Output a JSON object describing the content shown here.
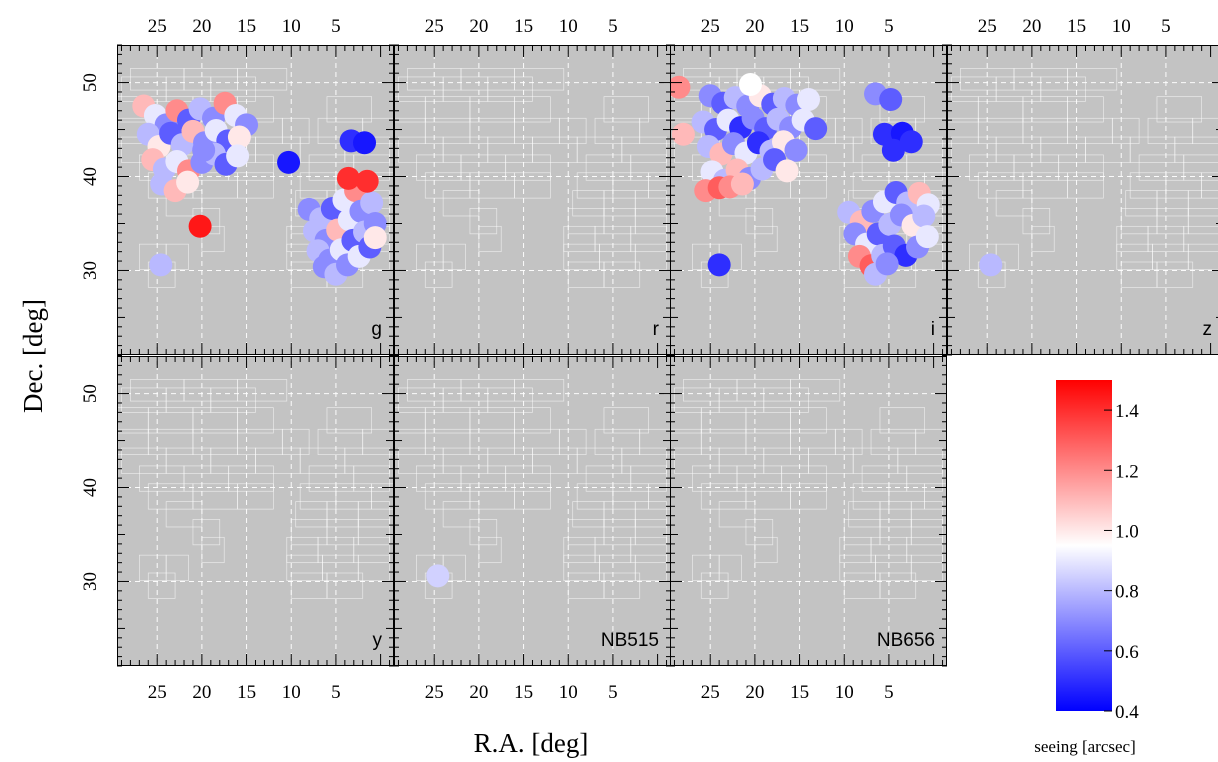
{
  "chart_data": {
    "type": "heatmap",
    "xlabel": "R.A. [deg]",
    "ylabel": "Dec. [deg]",
    "xlim": [
      29.5,
      -1.5
    ],
    "ylim": [
      21,
      54
    ],
    "x_ticks": [
      25,
      20,
      15,
      10,
      5
    ],
    "y_ticks": [
      30,
      40,
      50
    ],
    "panels": [
      {
        "band": "g",
        "spots": [
          [
            26.5,
            47.5,
            1.1
          ],
          [
            25.2,
            46.5,
            0.9
          ],
          [
            24,
            45.5,
            0.7
          ],
          [
            22.8,
            47,
            1.2
          ],
          [
            21.5,
            46,
            0.6
          ],
          [
            20.2,
            47.2,
            0.8
          ],
          [
            18.7,
            46.2,
            0.7
          ],
          [
            17.4,
            47.8,
            1.2
          ],
          [
            16.2,
            46.5,
            0.9
          ],
          [
            15,
            45.5,
            0.7
          ],
          [
            26,
            44.5,
            0.8
          ],
          [
            24.8,
            43.2,
            1.0
          ],
          [
            23.5,
            44.6,
            0.6
          ],
          [
            22.2,
            43.4,
            0.8
          ],
          [
            21,
            44.8,
            1.1
          ],
          [
            19.7,
            43.6,
            0.7
          ],
          [
            18.4,
            44.9,
            0.9
          ],
          [
            17.1,
            43.8,
            0.6
          ],
          [
            15.8,
            44.2,
            1.0
          ],
          [
            25.5,
            41.8,
            1.1
          ],
          [
            24.2,
            40.8,
            0.8
          ],
          [
            22.8,
            41.6,
            0.9
          ],
          [
            21.5,
            40.6,
            1.2
          ],
          [
            20,
            41.5,
            0.7
          ],
          [
            18.6,
            42.4,
            0.8
          ],
          [
            17.3,
            41.3,
            0.6
          ],
          [
            16,
            42.2,
            0.9
          ],
          [
            24.5,
            39.2,
            0.8
          ],
          [
            23,
            38.5,
            1.1
          ],
          [
            21.6,
            39.4,
            1.0
          ],
          [
            19.8,
            42.8,
            0.7
          ],
          [
            20.2,
            34.7,
            1.45
          ],
          [
            24.6,
            30.6,
            0.8
          ],
          [
            10.3,
            41.5,
            0.45
          ],
          [
            3.3,
            43.8,
            0.5
          ],
          [
            1.8,
            43.6,
            0.45
          ],
          [
            8,
            36.5,
            0.7
          ],
          [
            6.7,
            35.5,
            0.8
          ],
          [
            5.4,
            36.6,
            0.6
          ],
          [
            4.1,
            37.5,
            0.9
          ],
          [
            2.8,
            38.5,
            1.2
          ],
          [
            1.5,
            39.5,
            1.0
          ],
          [
            7.4,
            34.2,
            0.8
          ],
          [
            6.1,
            33.2,
            0.7
          ],
          [
            4.8,
            34.3,
            1.1
          ],
          [
            3.5,
            35.4,
            0.9
          ],
          [
            2.2,
            36.3,
            0.7
          ],
          [
            1,
            37.2,
            0.8
          ],
          [
            3.6,
            39.8,
            1.4
          ],
          [
            1.5,
            39.5,
            1.4
          ],
          [
            7,
            32.1,
            0.8
          ],
          [
            5.7,
            31.1,
            0.7
          ],
          [
            4.4,
            32.2,
            0.9
          ],
          [
            3.1,
            33.2,
            0.6
          ],
          [
            1.8,
            34.1,
            0.8
          ],
          [
            0.6,
            35,
            0.7
          ],
          [
            6.3,
            30.4,
            0.7
          ],
          [
            5,
            29.6,
            0.8
          ],
          [
            3.7,
            30.6,
            0.7
          ],
          [
            2.4,
            31.5,
            0.9
          ],
          [
            1.2,
            32.5,
            0.6
          ],
          [
            0.6,
            33.5,
            1.0
          ]
        ]
      },
      {
        "band": "r",
        "spots": []
      },
      {
        "band": "i",
        "spots": [
          [
            28.5,
            49.5,
            1.2
          ],
          [
            25,
            48.6,
            0.7
          ],
          [
            23.6,
            47.8,
            0.6
          ],
          [
            22.2,
            48.4,
            0.8
          ],
          [
            20.8,
            47.5,
            0.7
          ],
          [
            19.4,
            48.6,
            1.0
          ],
          [
            18,
            47.7,
            0.6
          ],
          [
            16.7,
            48.3,
            0.8
          ],
          [
            15.3,
            47.6,
            0.7
          ],
          [
            14,
            48.2,
            0.9
          ],
          [
            20.5,
            49.8,
            0.95
          ],
          [
            6.5,
            48.8,
            0.7
          ],
          [
            4.8,
            48.2,
            0.6
          ],
          [
            25.8,
            45.8,
            0.8
          ],
          [
            24.4,
            45,
            0.6
          ],
          [
            23,
            46,
            0.9
          ],
          [
            21.6,
            45.2,
            0.5
          ],
          [
            20.2,
            46.2,
            0.7
          ],
          [
            18.8,
            45.1,
            0.6
          ],
          [
            17.4,
            46.1,
            0.8
          ],
          [
            16,
            45.2,
            0.7
          ],
          [
            14.6,
            46,
            0.9
          ],
          [
            13.2,
            45.1,
            0.6
          ],
          [
            28,
            44.5,
            1.1
          ],
          [
            25.2,
            43.2,
            0.8
          ],
          [
            23.8,
            42.4,
            1.1
          ],
          [
            22.4,
            43.5,
            0.7
          ],
          [
            21,
            42.5,
            0.9
          ],
          [
            19.6,
            43.6,
            0.5
          ],
          [
            18.2,
            42.7,
            0.8
          ],
          [
            16.8,
            43.7,
            1.0
          ],
          [
            15.4,
            42.8,
            0.7
          ],
          [
            24.8,
            40.5,
            0.9
          ],
          [
            23.4,
            39.6,
            0.8
          ],
          [
            22,
            40.7,
            1.1
          ],
          [
            20.6,
            39.8,
            0.7
          ],
          [
            19.2,
            40.8,
            0.8
          ],
          [
            17.8,
            41.8,
            0.6
          ],
          [
            16.4,
            40.6,
            1.0
          ],
          [
            25.5,
            38.5,
            1.2
          ],
          [
            24,
            38.8,
            1.3
          ],
          [
            22.8,
            38.9,
            1.2
          ],
          [
            21.4,
            39.2,
            1.1
          ],
          [
            24,
            30.6,
            0.5
          ],
          [
            5.5,
            44.5,
            0.5
          ],
          [
            3.5,
            44.6,
            0.45
          ],
          [
            4.5,
            42.8,
            0.5
          ],
          [
            2.5,
            43.7,
            0.5
          ],
          [
            9.5,
            36.2,
            0.8
          ],
          [
            8.1,
            35.2,
            1.1
          ],
          [
            6.8,
            36.3,
            0.7
          ],
          [
            5.5,
            37.3,
            0.9
          ],
          [
            4.2,
            38.3,
            0.6
          ],
          [
            2.9,
            37.2,
            0.8
          ],
          [
            1.6,
            38.2,
            1.1
          ],
          [
            0.6,
            37,
            0.9
          ],
          [
            8.8,
            33.9,
            0.7
          ],
          [
            7.5,
            32.8,
            0.9
          ],
          [
            6.2,
            33.9,
            0.6
          ],
          [
            4.9,
            34.9,
            0.8
          ],
          [
            3.6,
            35.9,
            0.7
          ],
          [
            2.3,
            34.8,
            1.0
          ],
          [
            1.1,
            35.8,
            0.8
          ],
          [
            8.3,
            31.5,
            1.2
          ],
          [
            7,
            30.5,
            1.3
          ],
          [
            5.7,
            31.6,
            0.8
          ],
          [
            4.4,
            32.6,
            0.6
          ],
          [
            3.1,
            31.6,
            0.5
          ],
          [
            1.8,
            32.5,
            0.7
          ],
          [
            0.7,
            33.6,
            0.9
          ],
          [
            6.5,
            29.6,
            0.8
          ],
          [
            5.2,
            30.7,
            0.7
          ]
        ]
      },
      {
        "band": "z",
        "spots": [
          [
            24.6,
            30.6,
            0.8
          ]
        ]
      },
      {
        "band": "y",
        "spots": []
      },
      {
        "band": "NB515",
        "spots": [
          [
            24.6,
            30.6,
            0.85
          ]
        ]
      },
      {
        "band": "NB656",
        "spots": []
      }
    ],
    "colorbar": {
      "title": "seeing [arcsec]",
      "range": [
        0.4,
        1.5
      ],
      "ticks": [
        0.4,
        0.6,
        0.8,
        1.0,
        1.2,
        1.4
      ],
      "tick_labels": [
        "0.4",
        "0.6",
        "0.8",
        "1.0",
        "1.2",
        "1.4"
      ],
      "colormap": "blue-white-red",
      "colors": {
        "low": "#0000ff",
        "mid": "#ffffff",
        "high": "#ff0000"
      },
      "center": 0.95
    }
  }
}
